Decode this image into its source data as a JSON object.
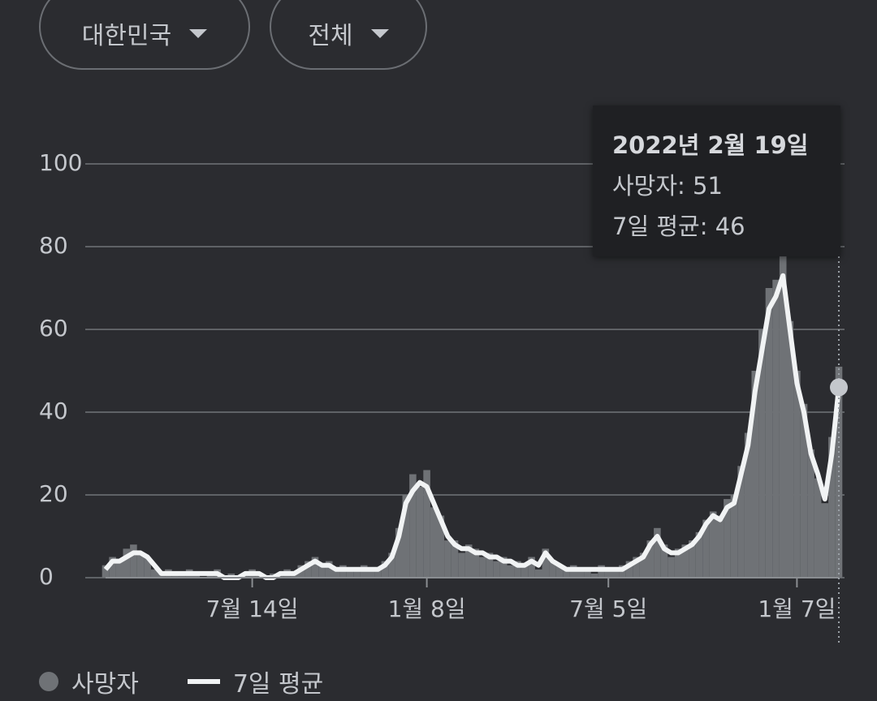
{
  "filters": [
    "대한민국",
    "전체"
  ],
  "tooltip": {
    "title": "2022년 2월 19일",
    "lines": [
      "사망자: 51",
      "7일 평균: 46"
    ]
  },
  "chart_data": {
    "type": "bar_line",
    "categories": [
      null,
      null,
      null,
      null,
      null,
      null,
      null,
      null,
      null,
      null,
      null,
      null,
      null,
      null,
      null,
      null,
      null,
      null,
      null,
      null,
      null,
      "7월 14일",
      null,
      null,
      null,
      null,
      null,
      null,
      null,
      null,
      null,
      null,
      null,
      null,
      null,
      null,
      null,
      null,
      null,
      null,
      null,
      null,
      null,
      null,
      null,
      null,
      "1월 8일",
      null,
      null,
      null,
      null,
      null,
      null,
      null,
      null,
      null,
      null,
      null,
      null,
      null,
      null,
      null,
      null,
      null,
      null,
      null,
      null,
      null,
      null,
      null,
      null,
      null,
      "7월 5일",
      null,
      null,
      null,
      null,
      null,
      null,
      null,
      null,
      null,
      null,
      null,
      null,
      null,
      null,
      null,
      null,
      null,
      null,
      null,
      null,
      null,
      null,
      null,
      null,
      null,
      null,
      "1월 7일",
      null,
      null,
      null,
      null,
      null,
      null
    ],
    "series": [
      {
        "name": "사망자",
        "type": "bar",
        "color": "#6f7276",
        "values": [
          3,
          5,
          4,
          7,
          8,
          6,
          5,
          2,
          1,
          2,
          1,
          1,
          2,
          1,
          0,
          1,
          2,
          0,
          1,
          0,
          1,
          2,
          1,
          0,
          1,
          1,
          2,
          1,
          3,
          4,
          5,
          3,
          4,
          2,
          3,
          2,
          2,
          3,
          2,
          2,
          4,
          6,
          12,
          20,
          25,
          22,
          26,
          17,
          15,
          9,
          9,
          6,
          8,
          7,
          5,
          6,
          4,
          5,
          3,
          4,
          3,
          5,
          2,
          7,
          4,
          3,
          2,
          3,
          2,
          2,
          1,
          3,
          2,
          2,
          3,
          4,
          5,
          6,
          9,
          12,
          8,
          5,
          7,
          8,
          9,
          11,
          14,
          16,
          15,
          19,
          20,
          27,
          35,
          50,
          60,
          70,
          72,
          78,
          62,
          50,
          42,
          31,
          24,
          18,
          34,
          51
        ]
      },
      {
        "name": "7일 평균",
        "type": "line",
        "color": "#f1f3f4",
        "values": [
          2,
          4,
          4,
          5,
          6,
          6,
          5,
          3,
          1,
          1,
          1,
          1,
          1,
          1,
          1,
          1,
          1,
          0,
          0,
          0,
          1,
          1,
          1,
          0,
          0,
          1,
          1,
          1,
          2,
          3,
          4,
          3,
          3,
          2,
          2,
          2,
          2,
          2,
          2,
          2,
          3,
          5,
          10,
          18,
          21,
          23,
          22,
          18,
          14,
          10,
          8,
          7,
          7,
          6,
          6,
          5,
          5,
          4,
          4,
          3,
          3,
          4,
          3,
          6,
          4,
          3,
          2,
          2,
          2,
          2,
          2,
          2,
          2,
          2,
          2,
          3,
          4,
          5,
          8,
          10,
          7,
          6,
          6,
          7,
          8,
          10,
          13,
          15,
          14,
          17,
          18,
          25,
          32,
          45,
          55,
          65,
          68,
          73,
          60,
          47,
          40,
          30,
          25,
          19,
          30,
          46
        ]
      }
    ],
    "ylim": [
      0,
      100
    ],
    "yticks": [
      0,
      20,
      40,
      60,
      80,
      100
    ],
    "grid": true
  }
}
